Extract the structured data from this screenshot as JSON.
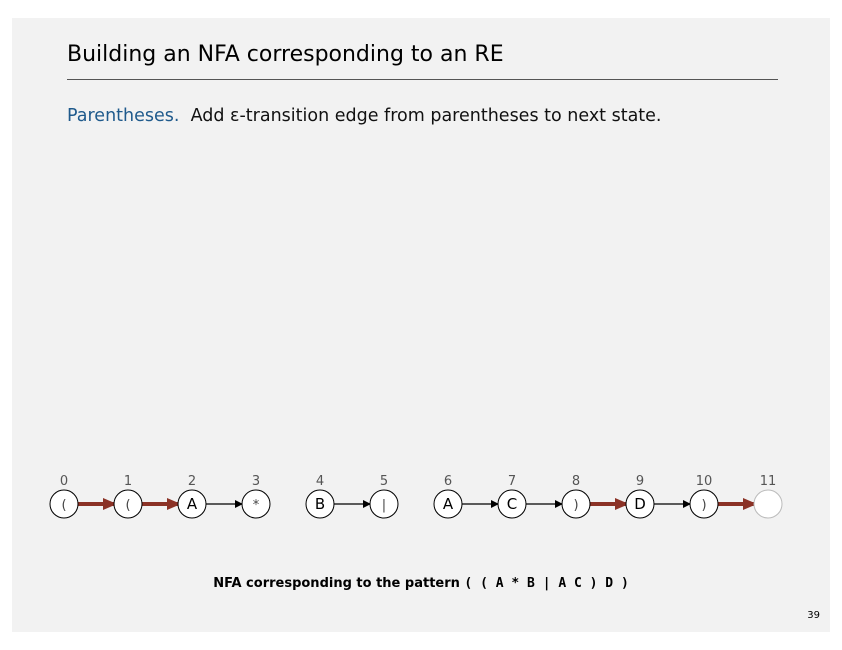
{
  "slide": {
    "title": "Building an NFA corresponding to an RE",
    "topic_label": "Parentheses.",
    "topic_text": "Add ε-transition edge from parentheses to next state.",
    "caption_prefix": "NFA corresponding to the pattern",
    "caption_pattern": "( ( A * B | A C ) D )",
    "page_number": "39"
  },
  "colors": {
    "accent_blue": "#1f5a8c",
    "epsilon_edge": "#8b3226",
    "match_edge": "#000000",
    "slide_bg": "#f2f2f2"
  },
  "nfa": {
    "states": [
      {
        "index": "0",
        "symbol": "("
      },
      {
        "index": "1",
        "symbol": "("
      },
      {
        "index": "2",
        "symbol": "A"
      },
      {
        "index": "3",
        "symbol": "*"
      },
      {
        "index": "4",
        "symbol": "B"
      },
      {
        "index": "5",
        "symbol": "|"
      },
      {
        "index": "6",
        "symbol": "A"
      },
      {
        "index": "7",
        "symbol": "C"
      },
      {
        "index": "8",
        "symbol": ")"
      },
      {
        "index": "9",
        "symbol": "D"
      },
      {
        "index": "10",
        "symbol": ")"
      },
      {
        "index": "11",
        "symbol": ""
      }
    ],
    "edges": [
      {
        "from": 0,
        "to": 1,
        "kind": "epsilon"
      },
      {
        "from": 1,
        "to": 2,
        "kind": "epsilon"
      },
      {
        "from": 2,
        "to": 3,
        "kind": "match"
      },
      {
        "from": 4,
        "to": 5,
        "kind": "match"
      },
      {
        "from": 6,
        "to": 7,
        "kind": "match"
      },
      {
        "from": 7,
        "to": 8,
        "kind": "match"
      },
      {
        "from": 8,
        "to": 9,
        "kind": "epsilon"
      },
      {
        "from": 9,
        "to": 10,
        "kind": "match"
      },
      {
        "from": 10,
        "to": 11,
        "kind": "epsilon"
      }
    ]
  }
}
